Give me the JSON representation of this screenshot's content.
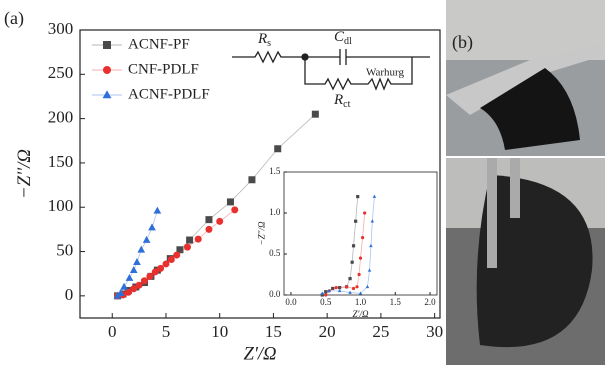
{
  "chart_data": [
    {
      "type": "scatter",
      "x_label": "Z'/Ω",
      "y_label": "−Z''/Ω",
      "xlim": [
        -3,
        30.5
      ],
      "ylim": [
        -25,
        300
      ],
      "xticks": [
        0,
        5,
        10,
        15,
        20,
        25,
        30
      ],
      "yticks": [
        0,
        50,
        100,
        150,
        200,
        250,
        300
      ],
      "grid": false,
      "legend": "upper left",
      "series": [
        {
          "name": "ACNF-PF",
          "color": "#4a4a4a",
          "marker": "square",
          "x": [
            0.5,
            1,
            1.5,
            2.2,
            3,
            3.6,
            4.2,
            5.4,
            6.3,
            7.2,
            9,
            11,
            13,
            15.4,
            18.9
          ],
          "values": [
            0,
            2,
            6,
            10,
            15,
            22,
            29,
            42,
            52,
            63,
            86,
            106,
            131,
            166,
            205
          ]
        },
        {
          "name": "CNF-PDLF",
          "color": "#e8312f",
          "marker": "circle",
          "x": [
            0.5,
            1,
            1.5,
            2,
            2.5,
            3,
            3.5,
            4,
            4.5,
            5,
            5.5,
            6,
            7,
            8,
            9,
            10,
            11.4
          ],
          "values": [
            0,
            1,
            4,
            8,
            12,
            17,
            22,
            27,
            31,
            36,
            41,
            46,
            55,
            64,
            75,
            84,
            97
          ]
        },
        {
          "name": "ACNF-PDLF",
          "color": "#2f6fd8",
          "marker": "triangle",
          "x": [
            0.5,
            0.8,
            1.1,
            1.6,
            2,
            2.3,
            2.7,
            3.2,
            3.7,
            4.2
          ],
          "values": [
            0,
            3,
            10,
            20,
            29,
            38,
            52,
            63,
            77,
            96
          ]
        }
      ]
    },
    {
      "type": "scatter",
      "x_label": "Z'/Ω",
      "y_label": "−Z''/Ω",
      "xlim": [
        -0.1,
        2.1
      ],
      "ylim": [
        0,
        1.5
      ],
      "xticks": [
        {
          "value": 0,
          "label": "0.0"
        },
        0.5,
        {
          "value": 1,
          "label": "1.0"
        },
        1.5,
        {
          "value": 2,
          "label": "2.0"
        }
      ],
      "yticks": [
        {
          "value": 0,
          "label": "0.0"
        },
        0.5,
        {
          "value": 1,
          "label": "1.0"
        },
        1.5
      ],
      "grid": false,
      "series": [
        {
          "color": "#4a4a4a",
          "marker": "square",
          "x": [
            0.45,
            0.5,
            0.6,
            0.7,
            0.8,
            0.85,
            0.88,
            0.9,
            0.93,
            0.96
          ],
          "values": [
            0,
            0.04,
            0.08,
            0.09,
            0.1,
            0.2,
            0.4,
            0.6,
            0.9,
            1.2
          ]
        },
        {
          "color": "#e8312f",
          "marker": "circle",
          "x": [
            0.5,
            0.55,
            0.65,
            0.8,
            0.9,
            0.95,
            0.98,
            1,
            1.03,
            1.06
          ],
          "values": [
            0,
            0.05,
            0.09,
            0.1,
            0.08,
            0.1,
            0.25,
            0.45,
            0.7,
            1
          ]
        },
        {
          "color": "#2f6fd8",
          "marker": "triangle",
          "x": [
            0.45,
            0.55,
            0.7,
            0.85,
            1,
            1.1,
            1.13,
            1.15,
            1.17,
            1.2
          ],
          "values": [
            0.02,
            0.05,
            0.05,
            0.03,
            0.02,
            0.1,
            0.3,
            0.6,
            0.9,
            1.2
          ]
        }
      ]
    }
  ],
  "figure": {
    "panel_labels": [
      "(a)",
      "(b)"
    ],
    "circuit": {
      "rs": {
        "symbol": "R",
        "sub": "s"
      },
      "cdl": {
        "symbol": "C",
        "sub": "dl"
      },
      "rct": {
        "symbol": "R",
        "sub": "ct"
      },
      "warburg": "Warhurg"
    }
  }
}
